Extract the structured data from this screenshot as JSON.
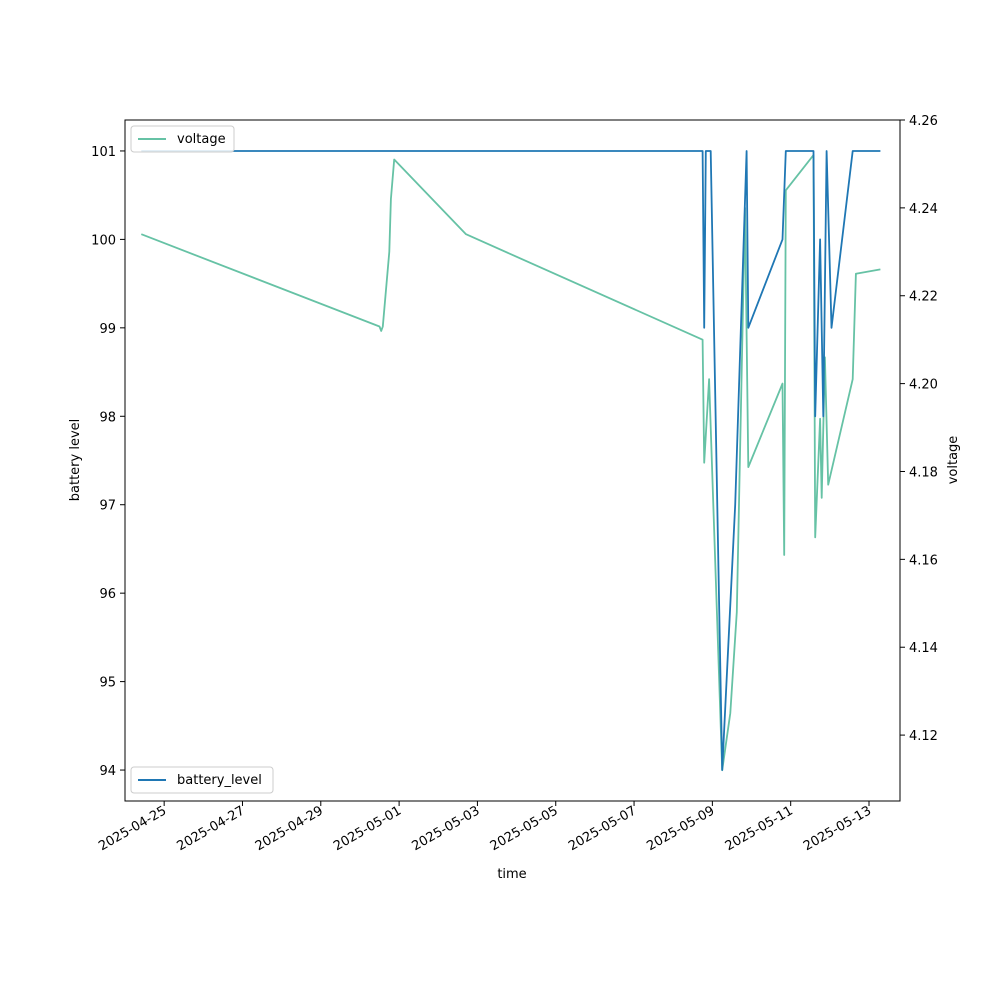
{
  "chart_data": {
    "type": "line",
    "xlabel": "time",
    "x_tick_labels": [
      "2025-04-25",
      "2025-04-27",
      "2025-04-29",
      "2025-05-01",
      "2025-05-03",
      "2025-05-05",
      "2025-05-07",
      "2025-05-09",
      "2025-05-11",
      "2025-05-13"
    ],
    "x_range": [
      "2025-04-24T00:00",
      "2025-05-13T19:00"
    ],
    "left_axis": {
      "label": "battery level",
      "range": [
        93.65,
        101.35
      ],
      "ticks": [
        94,
        95,
        96,
        97,
        98,
        99,
        100,
        101
      ]
    },
    "right_axis": {
      "label": "voltage",
      "range": [
        4.105,
        4.26
      ],
      "ticks": [
        4.12,
        4.14,
        4.16,
        4.18,
        4.2,
        4.22,
        4.24,
        4.26
      ],
      "tick_labels": [
        "4.12",
        "4.14",
        "4.16",
        "4.18",
        "4.20",
        "4.22",
        "4.24",
        "4.26"
      ]
    },
    "grid": false,
    "series": [
      {
        "name": "battery_level",
        "axis": "left",
        "color": "#1f77b4",
        "legend": "bottom-left",
        "points": [
          [
            "2025-04-24T10:00",
            101
          ],
          [
            "2025-05-08T18:00",
            101
          ],
          [
            "2025-05-08T19:00",
            99
          ],
          [
            "2025-05-08T20:00",
            101
          ],
          [
            "2025-05-08T23:00",
            101
          ],
          [
            "2025-05-09T06:00",
            94
          ],
          [
            "2025-05-09T14:00",
            97
          ],
          [
            "2025-05-09T21:00",
            101
          ],
          [
            "2025-05-09T22:00",
            99
          ],
          [
            "2025-05-10T19:00",
            100
          ],
          [
            "2025-05-10T21:00",
            101
          ],
          [
            "2025-05-11T14:00",
            101
          ],
          [
            "2025-05-11T15:00",
            98
          ],
          [
            "2025-05-11T18:00",
            100
          ],
          [
            "2025-05-11T20:00",
            98
          ],
          [
            "2025-05-11T22:00",
            101
          ],
          [
            "2025-05-12T01:00",
            99
          ],
          [
            "2025-05-12T14:00",
            101
          ],
          [
            "2025-05-13T07:00",
            101
          ]
        ]
      },
      {
        "name": "voltage",
        "axis": "right",
        "color": "#66c2a5",
        "legend": "top-left",
        "points": [
          [
            "2025-04-24T10:00",
            4.234
          ],
          [
            "2025-04-30T12:00",
            4.213
          ],
          [
            "2025-04-30T13:00",
            4.212
          ],
          [
            "2025-04-30T14:00",
            4.213
          ],
          [
            "2025-04-30T18:00",
            4.23
          ],
          [
            "2025-04-30T19:00",
            4.242
          ],
          [
            "2025-04-30T21:00",
            4.251
          ],
          [
            "2025-05-02T17:00",
            4.234
          ],
          [
            "2025-05-08T18:00",
            4.21
          ],
          [
            "2025-05-08T19:00",
            4.182
          ],
          [
            "2025-05-08T22:00",
            4.201
          ],
          [
            "2025-05-09T06:00",
            4.112
          ],
          [
            "2025-05-09T11:00",
            4.125
          ],
          [
            "2025-05-09T15:00",
            4.148
          ],
          [
            "2025-05-09T20:00",
            4.24
          ],
          [
            "2025-05-09T22:00",
            4.181
          ],
          [
            "2025-05-10T19:00",
            4.2
          ],
          [
            "2025-05-10T20:00",
            4.161
          ],
          [
            "2025-05-10T21:00",
            4.244
          ],
          [
            "2025-05-11T14:00",
            4.252
          ],
          [
            "2025-05-11T15:00",
            4.165
          ],
          [
            "2025-05-11T18:00",
            4.192
          ],
          [
            "2025-05-11T19:00",
            4.174
          ],
          [
            "2025-05-11T21:00",
            4.206
          ],
          [
            "2025-05-11T23:00",
            4.177
          ],
          [
            "2025-05-12T14:00",
            4.201
          ],
          [
            "2025-05-12T16:00",
            4.225
          ],
          [
            "2025-05-13T07:00",
            4.226
          ]
        ]
      }
    ]
  }
}
